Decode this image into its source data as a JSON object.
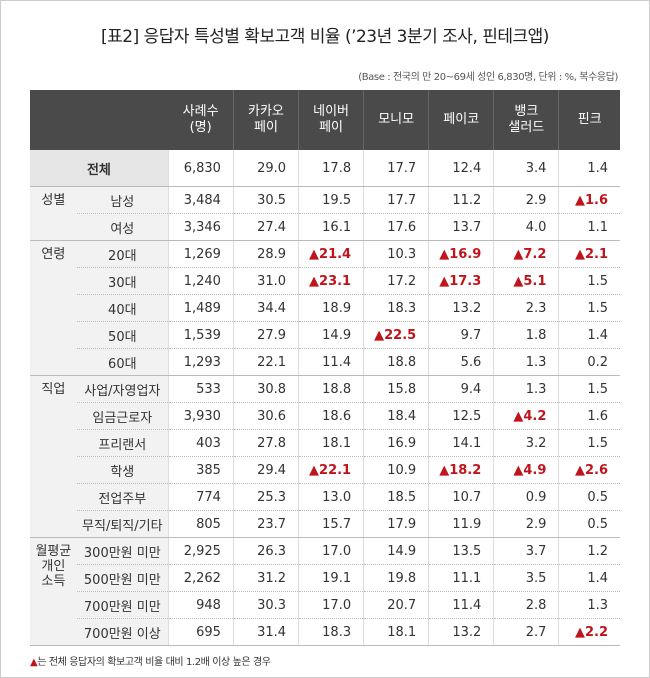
{
  "title": "[표2] 응답자 특성별 확보고객 비율 (’23년 3분기 조사, 핀테크앱)",
  "note": "(Base : 전국의 만 20~69세 성인 6,830명, 단위 : %, 복수응답)",
  "headers": [
    "사례수\n(명)",
    "카카오\n페이",
    "네이버\n페이",
    "모니모",
    "페이코",
    "뱅크\n샐러드",
    "핀크"
  ],
  "total_label": "전체",
  "total_values": [
    "6,830",
    "29.0",
    "17.8",
    "17.7",
    "12.4",
    "3.4",
    "1.4"
  ],
  "highlight_marker": "▲",
  "groups": [
    {
      "label": "성별",
      "rows": [
        {
          "label": "남성",
          "values": [
            "3,484",
            "30.5",
            "19.5",
            "17.7",
            "11.2",
            "2.9",
            "1.6"
          ],
          "hl": [
            6
          ]
        },
        {
          "label": "여성",
          "values": [
            "3,346",
            "27.4",
            "16.1",
            "17.6",
            "13.7",
            "4.0",
            "1.1"
          ],
          "hl": []
        }
      ]
    },
    {
      "label": "연령",
      "rows": [
        {
          "label": "20대",
          "values": [
            "1,269",
            "28.9",
            "21.4",
            "10.3",
            "16.9",
            "7.2",
            "2.1"
          ],
          "hl": [
            2,
            4,
            5,
            6
          ]
        },
        {
          "label": "30대",
          "values": [
            "1,240",
            "31.0",
            "23.1",
            "17.2",
            "17.3",
            "5.1",
            "1.5"
          ],
          "hl": [
            2,
            4,
            5
          ]
        },
        {
          "label": "40대",
          "values": [
            "1,489",
            "34.4",
            "18.9",
            "18.3",
            "13.2",
            "2.3",
            "1.5"
          ],
          "hl": []
        },
        {
          "label": "50대",
          "values": [
            "1,539",
            "27.9",
            "14.9",
            "22.5",
            "9.7",
            "1.8",
            "1.4"
          ],
          "hl": [
            3
          ]
        },
        {
          "label": "60대",
          "values": [
            "1,293",
            "22.1",
            "11.4",
            "18.8",
            "5.6",
            "1.3",
            "0.2"
          ],
          "hl": []
        }
      ]
    },
    {
      "label": "직업",
      "rows": [
        {
          "label": "사업/자영업자",
          "values": [
            "533",
            "30.8",
            "18.8",
            "15.8",
            "9.4",
            "1.3",
            "1.5"
          ],
          "hl": []
        },
        {
          "label": "임금근로자",
          "values": [
            "3,930",
            "30.6",
            "18.6",
            "18.4",
            "12.5",
            "4.2",
            "1.6"
          ],
          "hl": [
            5
          ]
        },
        {
          "label": "프리랜서",
          "values": [
            "403",
            "27.8",
            "18.1",
            "16.9",
            "14.1",
            "3.2",
            "1.5"
          ],
          "hl": []
        },
        {
          "label": "학생",
          "values": [
            "385",
            "29.4",
            "22.1",
            "10.9",
            "18.2",
            "4.9",
            "2.6"
          ],
          "hl": [
            2,
            4,
            5,
            6
          ]
        },
        {
          "label": "전업주부",
          "values": [
            "774",
            "25.3",
            "13.0",
            "18.5",
            "10.7",
            "0.9",
            "0.5"
          ],
          "hl": []
        },
        {
          "label": "무직/퇴직/기타",
          "values": [
            "805",
            "23.7",
            "15.7",
            "17.9",
            "11.9",
            "2.9",
            "0.5"
          ],
          "hl": []
        }
      ]
    },
    {
      "label": "월평균\n개인\n소득",
      "rows": [
        {
          "label": "300만원 미만",
          "values": [
            "2,925",
            "26.3",
            "17.0",
            "14.9",
            "13.5",
            "3.7",
            "1.2"
          ],
          "hl": []
        },
        {
          "label": "500만원 미만",
          "values": [
            "2,262",
            "31.2",
            "19.1",
            "19.8",
            "11.1",
            "3.5",
            "1.4"
          ],
          "hl": []
        },
        {
          "label": "700만원 미만",
          "values": [
            "948",
            "30.3",
            "17.0",
            "20.7",
            "11.4",
            "2.8",
            "1.3"
          ],
          "hl": []
        },
        {
          "label": "700만원 이상",
          "values": [
            "695",
            "31.4",
            "18.3",
            "18.1",
            "13.2",
            "2.7",
            "2.2"
          ],
          "hl": [
            6
          ]
        }
      ]
    }
  ],
  "footnote_marker": "▲",
  "footnote": "는 전체 응답자의 확보고객 비율 대비 1.2배 이상 높은 경우",
  "colors": {
    "header_bg": "#4a4a4a",
    "highlight": "#c0141c",
    "label_bg": "#f2f2f2"
  }
}
